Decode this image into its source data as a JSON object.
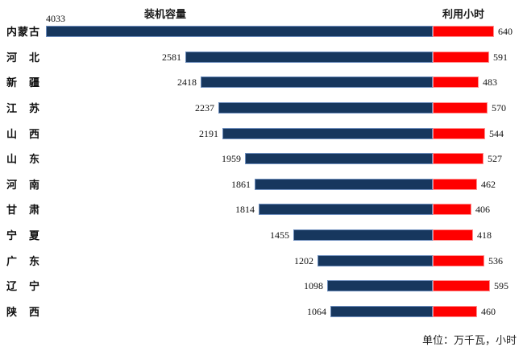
{
  "chart_data": {
    "type": "bar",
    "subtype": "tornado-diverging",
    "left_title": "装机容量",
    "right_title": "利用小时",
    "footer_note": "单位：万千瓦，小时",
    "categories": [
      "内蒙古",
      "河北",
      "新疆",
      "江苏",
      "山西",
      "山东",
      "河南",
      "甘肃",
      "宁夏",
      "广东",
      "辽宁",
      "陕西"
    ],
    "series": [
      {
        "name": "装机容量",
        "side": "left",
        "color": "#17375E",
        "values": [
          4033,
          2581,
          2418,
          2237,
          2191,
          1959,
          1861,
          1814,
          1455,
          1202,
          1098,
          1064
        ]
      },
      {
        "name": "利用小时",
        "side": "right",
        "color": "#FF0000",
        "values": [
          640,
          591,
          483,
          570,
          544,
          527,
          462,
          406,
          418,
          536,
          595,
          460
        ]
      }
    ],
    "layout_hints": {
      "shared_value_scale": true,
      "left_axis_max": 4033,
      "right_axis_max": 640,
      "grid": false,
      "legend": "titles-above-columns",
      "data_labels": "outside-ends"
    }
  }
}
